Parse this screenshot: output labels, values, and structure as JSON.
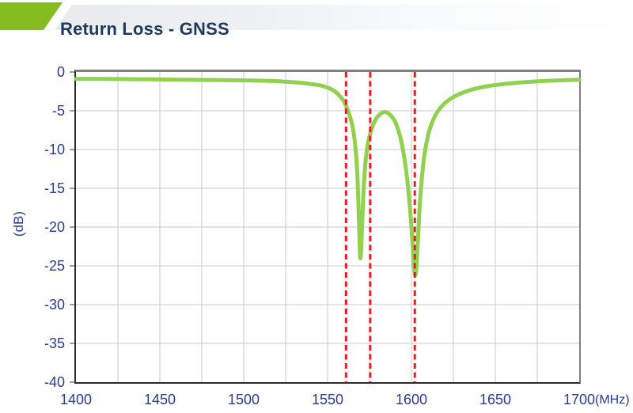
{
  "header": {
    "title": "Return Loss - GNSS"
  },
  "colors": {
    "accent_green": "#85bc20",
    "curve_green": "#92d050",
    "marker_red": "#ec1c24",
    "axis_text_blue": "#2c3b94",
    "title_navy": "#1e3a5e",
    "grid_gray": "#c9c9c9",
    "frame_gray": "#7f7f7f",
    "frame_dark": "#2b2b2b",
    "header_bar_from": "#e7e9ec",
    "header_bar_to": "#ffffff"
  },
  "chart_data": {
    "type": "line",
    "title": "Return Loss - GNSS",
    "xlabel": "(MHz)",
    "ylabel": "(dB)",
    "xlim": [
      1400,
      1700
    ],
    "ylim": [
      -40,
      0
    ],
    "x_ticks": [
      1400,
      1450,
      1500,
      1550,
      1600,
      1650,
      1700
    ],
    "x_minor_grid_step": 25,
    "y_ticks": [
      0,
      -5,
      -10,
      -15,
      -20,
      -25,
      -30,
      -35,
      -40
    ],
    "grid": true,
    "legend": false,
    "marker_lines": {
      "style": "dashed",
      "x_values": [
        1561,
        1575.4,
        1602
      ]
    },
    "series": [
      {
        "name": "Return Loss",
        "points": [
          [
            1400,
            -0.9
          ],
          [
            1415,
            -0.9
          ],
          [
            1430,
            -0.92
          ],
          [
            1445,
            -0.95
          ],
          [
            1460,
            -1.0
          ],
          [
            1475,
            -1.02
          ],
          [
            1490,
            -1.05
          ],
          [
            1505,
            -1.1
          ],
          [
            1515,
            -1.15
          ],
          [
            1525,
            -1.25
          ],
          [
            1534,
            -1.4
          ],
          [
            1540,
            -1.55
          ],
          [
            1546,
            -1.75
          ],
          [
            1551,
            -2.1
          ],
          [
            1555,
            -2.6
          ],
          [
            1558,
            -3.3
          ],
          [
            1560,
            -3.9
          ],
          [
            1562,
            -4.9
          ],
          [
            1564,
            -6.2
          ],
          [
            1565.5,
            -7.8
          ],
          [
            1566.7,
            -10
          ],
          [
            1567.7,
            -13
          ],
          [
            1568.4,
            -17
          ],
          [
            1569,
            -21.5
          ],
          [
            1569.5,
            -24
          ],
          [
            1570.1,
            -22.5
          ],
          [
            1570.9,
            -18
          ],
          [
            1571.8,
            -14
          ],
          [
            1572.8,
            -11.2
          ],
          [
            1574,
            -9.3
          ],
          [
            1575.4,
            -8.0
          ],
          [
            1577,
            -6.9
          ],
          [
            1579,
            -6.0
          ],
          [
            1581,
            -5.5
          ],
          [
            1583,
            -5.2
          ],
          [
            1584.5,
            -5.15
          ],
          [
            1586,
            -5.3
          ],
          [
            1588,
            -5.7
          ],
          [
            1590,
            -6.3
          ],
          [
            1592,
            -7.4
          ],
          [
            1594,
            -9.0
          ],
          [
            1596,
            -11.4
          ],
          [
            1597.8,
            -14.5
          ],
          [
            1599.3,
            -18
          ],
          [
            1600.6,
            -22
          ],
          [
            1601.6,
            -25.3
          ],
          [
            1602.3,
            -26.2
          ],
          [
            1603,
            -25
          ],
          [
            1603.9,
            -21.5
          ],
          [
            1605,
            -17
          ],
          [
            1606.5,
            -13
          ],
          [
            1608,
            -10.3
          ],
          [
            1610,
            -8.1
          ],
          [
            1612,
            -6.7
          ],
          [
            1614.5,
            -5.5
          ],
          [
            1617,
            -4.7
          ],
          [
            1620,
            -4.0
          ],
          [
            1623,
            -3.5
          ],
          [
            1627,
            -3.0
          ],
          [
            1632,
            -2.55
          ],
          [
            1638,
            -2.15
          ],
          [
            1645,
            -1.85
          ],
          [
            1653,
            -1.6
          ],
          [
            1662,
            -1.4
          ],
          [
            1672,
            -1.25
          ],
          [
            1683,
            -1.12
          ],
          [
            1692,
            -1.05
          ],
          [
            1700,
            -1.0
          ]
        ]
      }
    ]
  }
}
